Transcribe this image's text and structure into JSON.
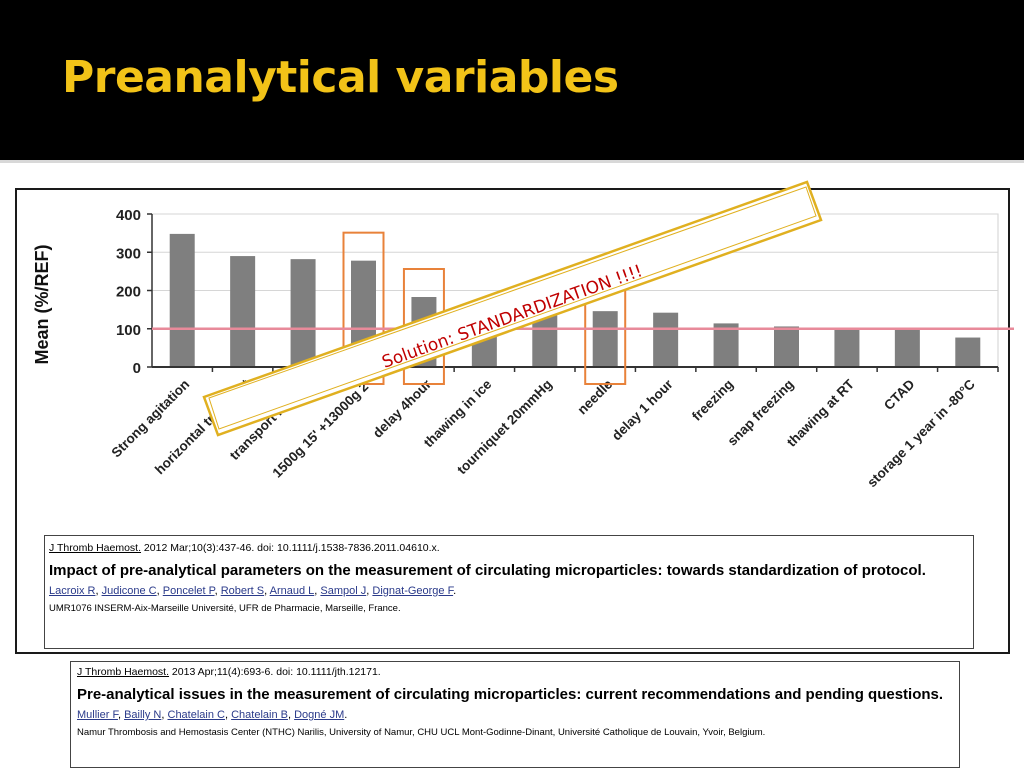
{
  "slide": {
    "title": "Preanalytical variables"
  },
  "colors": {
    "background": "#000000",
    "title": "#f2c318",
    "bar": "#7f7f7f",
    "ref_line": "#e88a9a",
    "highlight_box": "#e8823a",
    "callout_border": "#e0b020",
    "callout_text": "#c00000"
  },
  "callout": {
    "text": "Solution: STANDARDIZATION !!!!"
  },
  "chart_data": {
    "type": "bar",
    "ylabel": "Mean (%/REF)",
    "xlabel": "",
    "ylim": [
      0,
      400
    ],
    "yticks": [
      "0",
      "100",
      "200",
      "300",
      "400"
    ],
    "grid": true,
    "reference_line": 100,
    "categories": [
      "Strong agitation",
      "horizontal transport",
      "transport in tube",
      "1500g 15' +13000g 2'",
      "delay 4hour",
      "thawing in ice",
      "tourniquet 20mmHg",
      "needle",
      "delay 1 hour",
      "freezing",
      "snap freezing",
      "thawing at RT",
      "CTAD",
      "storage 1 year in -80°C"
    ],
    "values": [
      348,
      290,
      282,
      278,
      183,
      125,
      135,
      146,
      142,
      114,
      106,
      103,
      99,
      77
    ],
    "highlighted_categories": [
      "1500g 15' +13000g 2'",
      "delay 4hour",
      "needle"
    ]
  },
  "references": [
    {
      "journal": "J Thromb Haemost.",
      "citation": " 2012 Mar;10(3):437-46. doi: 10.1111/j.1538-7836.2011.04610.x.",
      "title": "Impact of pre-analytical parameters on the measurement of circulating microparticles: towards standardization of protocol.",
      "authors": [
        "Lacroix R",
        "Judicone C",
        "Poncelet P",
        "Robert S",
        "Arnaud L",
        "Sampol J",
        "Dignat-George F"
      ],
      "affiliation": "UMR1076 INSERM-Aix-Marseille Université, UFR de Pharmacie, Marseille, France."
    },
    {
      "journal": "J Thromb Haemost.",
      "citation": " 2013 Apr;11(4):693-6. doi: 10.1111/jth.12171.",
      "title": "Pre-analytical issues in the measurement of circulating microparticles: current recommendations and pending questions.",
      "authors": [
        "Mullier F",
        "Bailly N",
        "Chatelain C",
        "Chatelain B",
        "Dogné JM"
      ],
      "affiliation": "Namur Thrombosis and Hemostasis Center (NTHC) Narilis, University of Namur, CHU UCL Mont-Godinne-Dinant, Université Catholique de Louvain, Yvoir, Belgium."
    }
  ]
}
